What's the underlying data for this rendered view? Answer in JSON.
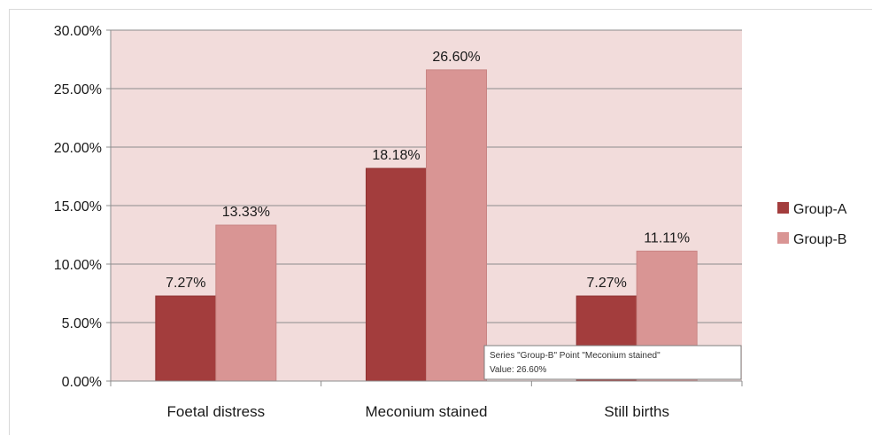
{
  "chart_data": {
    "type": "bar",
    "categories": [
      "Foetal distress",
      "Meconium stained",
      "Still births"
    ],
    "series": [
      {
        "name": "Group-A",
        "values": [
          7.27,
          18.18,
          7.27
        ],
        "labels": [
          "7.27%",
          "18.18%",
          "7.27%"
        ],
        "color": "#a33d3d"
      },
      {
        "name": "Group-B",
        "values": [
          13.33,
          26.6,
          11.11
        ],
        "labels": [
          "13.33%",
          "26.60%",
          "11.11%"
        ],
        "color": "#d99594"
      }
    ],
    "ylim": [
      0,
      30
    ],
    "yticks": [
      0,
      5,
      10,
      15,
      20,
      25,
      30
    ],
    "ytick_labels": [
      "0.00%",
      "5.00%",
      "10.00%",
      "15.00%",
      "20.00%",
      "25.00%",
      "30.00%"
    ],
    "grid": true,
    "legend": "right",
    "plot_background": "#f2dcdb"
  },
  "tooltip": {
    "line1": "Series \"Group-B\" Point \"Meconium stained\"",
    "line2": "Value: 26.60%"
  }
}
